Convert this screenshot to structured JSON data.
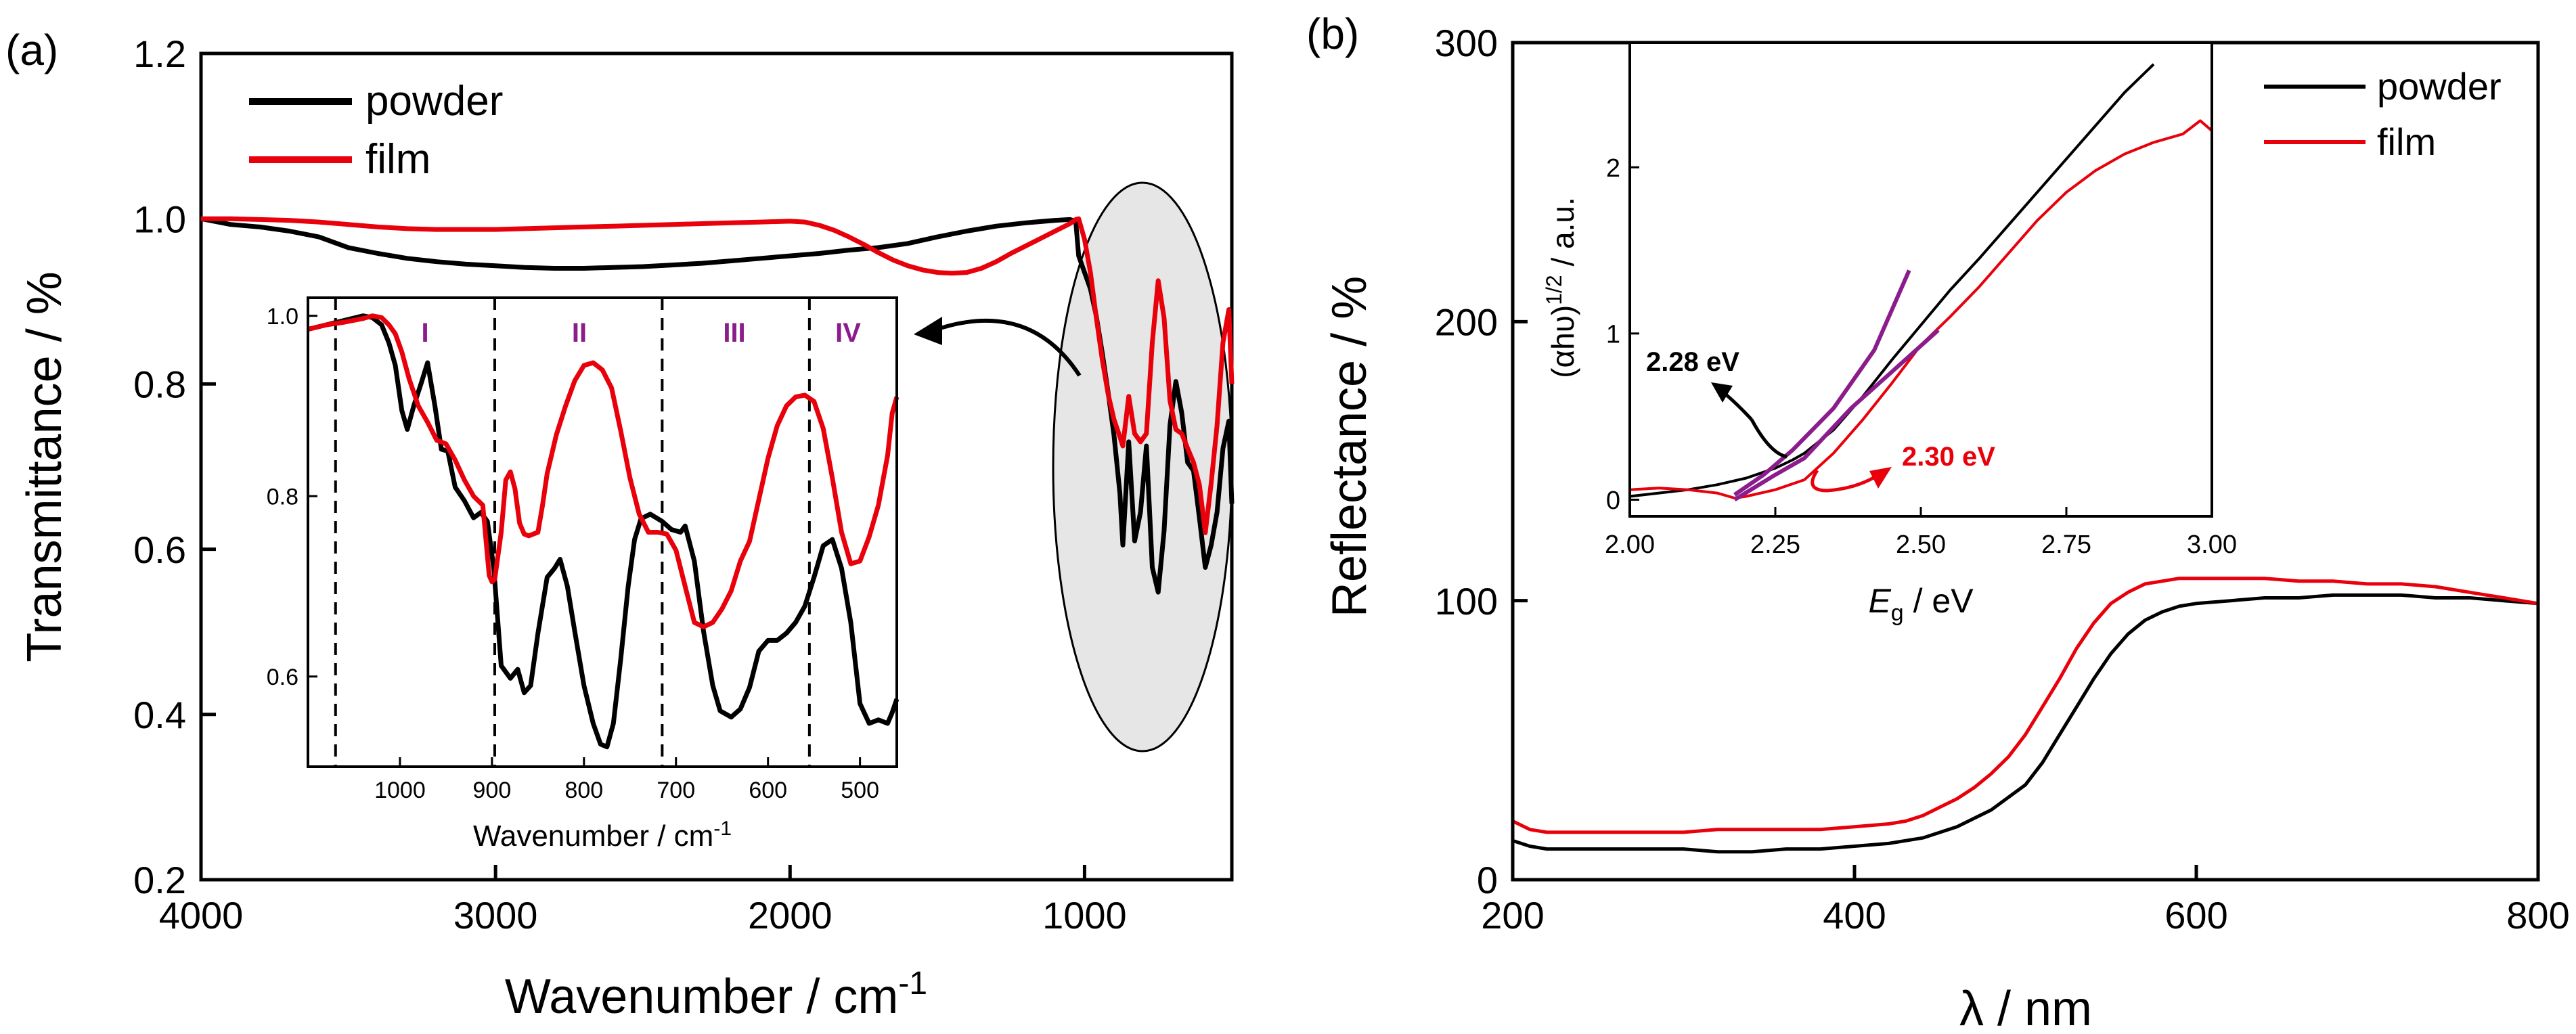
{
  "colors": {
    "powder": "#000000",
    "film": "#e8000b",
    "fit": "#8b1c8b",
    "roman": "#8b1c8b",
    "highlight": "#e6e6e6"
  },
  "panel_a": {
    "panel_label": "(a)",
    "ylabel": "Transmittance / %",
    "xlabel_main": "Wavenumber / cm",
    "xlabel_sup": "-1",
    "legend": [
      "powder",
      "film"
    ],
    "inset": {
      "xlabel_main": "Wavenumber / cm",
      "xlabel_sup": "-1",
      "regions": [
        "I",
        "II",
        "III",
        "IV"
      ]
    }
  },
  "panel_b": {
    "panel_label": "(b)",
    "ylabel": "Reflectance / %",
    "xlabel": "λ / nm",
    "legend": [
      "powder",
      "film"
    ],
    "inset": {
      "ylabel_main": "(αhυ)",
      "ylabel_sup": "1/2",
      "ylabel_tail": " / a.u.",
      "xlabel_italic": "E",
      "xlabel_sub": "g",
      "xlabel_tail": " / eV",
      "annotations": [
        "2.28 eV",
        "2.30 eV"
      ]
    }
  },
  "chart_data": [
    {
      "id": "a_main",
      "type": "line",
      "title": "",
      "xlabel": "Wavenumber / cm-1",
      "ylabel": "Transmittance / %",
      "xlim": [
        4000,
        500
      ],
      "ylim": [
        0.2,
        1.2
      ],
      "xticks": [
        4000,
        3000,
        2000,
        1000
      ],
      "yticks": [
        0.2,
        0.4,
        0.6,
        0.8,
        1.0,
        1.2
      ],
      "xtick_labels": [
        "4000",
        "3000",
        "2000",
        "1000"
      ],
      "ytick_labels": [
        "0.2",
        "0.4",
        "0.6",
        "0.8",
        "1.0",
        "1.2"
      ],
      "legend_position": "top-left",
      "series": [
        {
          "name": "powder",
          "x": [
            4000,
            3900,
            3800,
            3700,
            3600,
            3500,
            3400,
            3300,
            3200,
            3100,
            3000,
            2900,
            2800,
            2700,
            2600,
            2500,
            2400,
            2300,
            2200,
            2100,
            2000,
            1900,
            1800,
            1700,
            1600,
            1500,
            1400,
            1300,
            1200,
            1100,
            1050,
            1030,
            1020,
            1000,
            980,
            960,
            940,
            920,
            900,
            880,
            870,
            850,
            830,
            810,
            790,
            770,
            750,
            730,
            710,
            690,
            670,
            650,
            630,
            610,
            590,
            570,
            550,
            530,
            510,
            500
          ],
          "y": [
            1.0,
            0.993,
            0.99,
            0.985,
            0.978,
            0.965,
            0.958,
            0.952,
            0.948,
            0.945,
            0.943,
            0.941,
            0.94,
            0.94,
            0.941,
            0.942,
            0.944,
            0.946,
            0.949,
            0.952,
            0.955,
            0.958,
            0.962,
            0.965,
            0.97,
            0.978,
            0.985,
            0.991,
            0.995,
            0.998,
            0.999,
            0.997,
            0.955,
            0.935,
            0.915,
            0.882,
            0.838,
            0.79,
            0.738,
            0.668,
            0.605,
            0.73,
            0.61,
            0.645,
            0.725,
            0.578,
            0.548,
            0.622,
            0.75,
            0.803,
            0.765,
            0.705,
            0.695,
            0.638,
            0.578,
            0.605,
            0.645,
            0.722,
            0.755,
            0.655
          ]
        },
        {
          "name": "film",
          "x": [
            4000,
            3900,
            3800,
            3700,
            3600,
            3500,
            3400,
            3300,
            3200,
            3100,
            3000,
            2900,
            2800,
            2700,
            2600,
            2500,
            2400,
            2300,
            2200,
            2100,
            2000,
            1950,
            1900,
            1850,
            1800,
            1750,
            1700,
            1650,
            1600,
            1550,
            1500,
            1450,
            1400,
            1350,
            1300,
            1250,
            1200,
            1150,
            1100,
            1050,
            1030,
            1020,
            1000,
            980,
            960,
            940,
            920,
            900,
            880,
            870,
            850,
            830,
            810,
            790,
            770,
            750,
            730,
            710,
            690,
            670,
            650,
            630,
            610,
            590,
            570,
            550,
            530,
            510,
            500
          ],
          "y": [
            1.0,
            1.0,
            0.999,
            0.998,
            0.996,
            0.993,
            0.99,
            0.988,
            0.987,
            0.987,
            0.987,
            0.988,
            0.989,
            0.99,
            0.991,
            0.992,
            0.993,
            0.994,
            0.995,
            0.996,
            0.997,
            0.996,
            0.992,
            0.986,
            0.978,
            0.969,
            0.959,
            0.95,
            0.943,
            0.938,
            0.935,
            0.934,
            0.935,
            0.94,
            0.948,
            0.958,
            0.967,
            0.976,
            0.985,
            0.994,
            0.999,
            1.0,
            0.975,
            0.935,
            0.88,
            0.83,
            0.788,
            0.757,
            0.736,
            0.725,
            0.785,
            0.74,
            0.73,
            0.74,
            0.85,
            0.925,
            0.88,
            0.78,
            0.745,
            0.74,
            0.722,
            0.705,
            0.678,
            0.62,
            0.68,
            0.75,
            0.85,
            0.89,
            0.8
          ]
        }
      ]
    },
    {
      "id": "a_inset",
      "type": "line",
      "title": "",
      "xlabel": "Wavenumber / cm-1",
      "ylabel": "",
      "xlim": [
        1100,
        460
      ],
      "ylim": [
        0.5,
        1.02
      ],
      "xticks": [
        1000,
        900,
        800,
        700,
        600,
        500
      ],
      "yticks": [
        0.6,
        0.8,
        1.0
      ],
      "xtick_labels": [
        "1000",
        "900",
        "800",
        "700",
        "600",
        "500"
      ],
      "ytick_labels": [
        "0.6",
        "0.8",
        "1.0"
      ],
      "region_boundaries": [
        1070,
        897,
        715,
        555
      ],
      "series": [
        {
          "name": "powder",
          "x": [
            1100,
            1080,
            1060,
            1040,
            1030,
            1020,
            1012,
            1005,
            998,
            992,
            985,
            977,
            970,
            962,
            955,
            948,
            940,
            930,
            920,
            912,
            905,
            898,
            890,
            880,
            872,
            865,
            858,
            850,
            840,
            832,
            826,
            818,
            810,
            800,
            790,
            782,
            775,
            768,
            760,
            752,
            745,
            738,
            728,
            715,
            705,
            695,
            690,
            680,
            670,
            660,
            652,
            640,
            630,
            620,
            610,
            600,
            590,
            580,
            570,
            560,
            550,
            540,
            530,
            520,
            510,
            500,
            490,
            480,
            470,
            465,
            460
          ],
          "y": [
            0.985,
            0.99,
            0.995,
            1.0,
            0.998,
            0.99,
            0.97,
            0.945,
            0.895,
            0.874,
            0.9,
            0.925,
            0.948,
            0.9,
            0.852,
            0.85,
            0.81,
            0.795,
            0.776,
            0.782,
            0.772,
            0.72,
            0.612,
            0.598,
            0.608,
            0.582,
            0.59,
            0.648,
            0.71,
            0.72,
            0.73,
            0.7,
            0.65,
            0.59,
            0.548,
            0.525,
            0.522,
            0.548,
            0.62,
            0.7,
            0.752,
            0.775,
            0.78,
            0.772,
            0.763,
            0.76,
            0.767,
            0.728,
            0.65,
            0.59,
            0.562,
            0.555,
            0.564,
            0.588,
            0.628,
            0.64,
            0.64,
            0.648,
            0.66,
            0.678,
            0.71,
            0.745,
            0.752,
            0.72,
            0.66,
            0.57,
            0.548,
            0.552,
            0.548,
            0.56,
            0.575
          ]
        },
        {
          "name": "film",
          "x": [
            1100,
            1080,
            1060,
            1040,
            1030,
            1020,
            1012,
            1005,
            998,
            990,
            980,
            970,
            960,
            950,
            940,
            930,
            920,
            910,
            903,
            900,
            897,
            890,
            885,
            880,
            875,
            870,
            865,
            860,
            855,
            850,
            845,
            840,
            830,
            820,
            810,
            800,
            790,
            780,
            770,
            760,
            750,
            740,
            730,
            720,
            710,
            700,
            690,
            680,
            670,
            660,
            650,
            640,
            630,
            620,
            610,
            600,
            590,
            580,
            570,
            560,
            550,
            540,
            530,
            520,
            510,
            500,
            490,
            480,
            470,
            465,
            460
          ],
          "y": [
            0.985,
            0.99,
            0.993,
            0.997,
            1.0,
            0.998,
            0.99,
            0.98,
            0.96,
            0.93,
            0.9,
            0.882,
            0.862,
            0.858,
            0.84,
            0.818,
            0.8,
            0.79,
            0.712,
            0.705,
            0.708,
            0.76,
            0.818,
            0.827,
            0.808,
            0.77,
            0.758,
            0.756,
            0.758,
            0.76,
            0.79,
            0.825,
            0.868,
            0.9,
            0.928,
            0.945,
            0.948,
            0.94,
            0.92,
            0.872,
            0.82,
            0.78,
            0.76,
            0.76,
            0.758,
            0.74,
            0.7,
            0.66,
            0.655,
            0.66,
            0.675,
            0.695,
            0.728,
            0.75,
            0.796,
            0.842,
            0.878,
            0.9,
            0.91,
            0.912,
            0.905,
            0.875,
            0.82,
            0.76,
            0.725,
            0.728,
            0.755,
            0.79,
            0.845,
            0.892,
            0.91
          ]
        }
      ]
    },
    {
      "id": "b_main",
      "type": "line",
      "title": "",
      "xlabel": "λ / nm",
      "ylabel": "Reflectance / %",
      "xlim": [
        200,
        800
      ],
      "ylim": [
        0,
        300
      ],
      "xticks": [
        200,
        400,
        600,
        800
      ],
      "yticks": [
        0,
        100,
        200,
        300
      ],
      "xtick_labels": [
        "200",
        "400",
        "600",
        "800"
      ],
      "ytick_labels": [
        "0",
        "100",
        "200",
        "300"
      ],
      "legend_position": "top-right",
      "series": [
        {
          "name": "powder",
          "x": [
            200,
            210,
            220,
            240,
            260,
            280,
            300,
            320,
            340,
            360,
            380,
            400,
            420,
            440,
            460,
            480,
            500,
            510,
            520,
            530,
            540,
            550,
            560,
            570,
            580,
            590,
            600,
            620,
            640,
            660,
            680,
            700,
            720,
            740,
            760,
            780,
            800
          ],
          "y": [
            14,
            12,
            11,
            11,
            11,
            11,
            11,
            10,
            10,
            11,
            11,
            12,
            13,
            15,
            19,
            25,
            34,
            42,
            52,
            62,
            72,
            81,
            88,
            93,
            96,
            98,
            99,
            100,
            101,
            101,
            102,
            102,
            102,
            101,
            101,
            100,
            99
          ]
        },
        {
          "name": "film",
          "x": [
            200,
            210,
            220,
            240,
            260,
            280,
            300,
            320,
            340,
            360,
            380,
            400,
            420,
            430,
            440,
            450,
            460,
            470,
            480,
            490,
            500,
            510,
            520,
            530,
            540,
            550,
            560,
            570,
            580,
            590,
            600,
            620,
            640,
            660,
            680,
            700,
            720,
            740,
            760,
            780,
            800
          ],
          "y": [
            21,
            18,
            17,
            17,
            17,
            17,
            17,
            18,
            18,
            18,
            18,
            19,
            20,
            21,
            23,
            26,
            29,
            33,
            38,
            44,
            52,
            62,
            72,
            83,
            92,
            99,
            103,
            106,
            107,
            108,
            108,
            108,
            108,
            107,
            107,
            106,
            106,
            105,
            103,
            101,
            99
          ]
        }
      ]
    },
    {
      "id": "b_inset",
      "type": "line",
      "title": "",
      "xlabel": "Eg / eV",
      "ylabel": "(αhυ)1/2 / a.u.",
      "xlim": [
        2.0,
        3.0
      ],
      "ylim": [
        -0.1,
        2.75
      ],
      "xticks": [
        2.0,
        2.25,
        2.5,
        2.75,
        3.0
      ],
      "yticks": [
        0,
        1,
        2
      ],
      "xtick_labels": [
        "2.00",
        "2.25",
        "2.50",
        "2.75",
        "3.00"
      ],
      "ytick_labels": [
        "0",
        "1",
        "2"
      ],
      "annotations": [
        {
          "text": "2.28 eV",
          "color": "#000000"
        },
        {
          "text": "2.30 eV",
          "color": "#e8000b"
        }
      ],
      "series": [
        {
          "name": "powder",
          "x": [
            2.0,
            2.05,
            2.1,
            2.15,
            2.2,
            2.25,
            2.28,
            2.3,
            2.35,
            2.4,
            2.45,
            2.5,
            2.55,
            2.6,
            2.65,
            2.7,
            2.75,
            2.8,
            2.85,
            2.9
          ],
          "y": [
            0.02,
            0.04,
            0.06,
            0.09,
            0.13,
            0.19,
            0.24,
            0.28,
            0.42,
            0.62,
            0.84,
            1.05,
            1.26,
            1.45,
            1.65,
            1.85,
            2.05,
            2.25,
            2.45,
            2.62
          ]
        },
        {
          "name": "film",
          "x": [
            2.0,
            2.05,
            2.1,
            2.15,
            2.18,
            2.2,
            2.25,
            2.3,
            2.35,
            2.4,
            2.45,
            2.5,
            2.55,
            2.6,
            2.65,
            2.7,
            2.75,
            2.8,
            2.85,
            2.9,
            2.95,
            2.98,
            3.0
          ],
          "y": [
            0.06,
            0.07,
            0.06,
            0.04,
            0.01,
            0.02,
            0.06,
            0.12,
            0.28,
            0.48,
            0.7,
            0.93,
            1.1,
            1.28,
            1.48,
            1.68,
            1.85,
            1.98,
            2.08,
            2.15,
            2.2,
            2.28,
            2.22
          ]
        },
        {
          "name": "fit powder",
          "x": [
            2.18,
            2.23,
            2.28,
            2.35,
            2.42,
            2.48
          ],
          "y": [
            0.03,
            0.15,
            0.3,
            0.55,
            0.9,
            1.38
          ]
        },
        {
          "name": "fit film",
          "x": [
            2.18,
            2.25,
            2.3,
            2.38,
            2.46,
            2.53
          ],
          "y": [
            0.0,
            0.15,
            0.25,
            0.55,
            0.8,
            1.02
          ]
        }
      ]
    }
  ]
}
